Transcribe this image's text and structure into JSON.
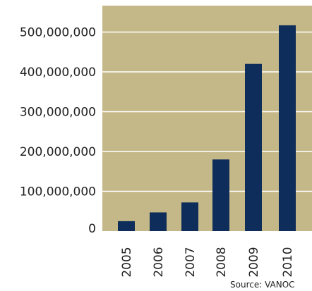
{
  "chart_data": {
    "type": "bar",
    "title": "",
    "xlabel": "",
    "ylabel": "",
    "categories": [
      "2005",
      "2006",
      "2007",
      "2008",
      "2009",
      "2010"
    ],
    "values": [
      25000000,
      47000000,
      72000000,
      180000000,
      420000000,
      517000000
    ],
    "ylim": [
      0,
      550000000
    ],
    "yticks": [
      0,
      100000000,
      200000000,
      300000000,
      400000000,
      500000000
    ],
    "ytick_labels": [
      "0",
      "100,000,000",
      "200,000,000",
      "300,000,000",
      "400,000,000",
      "500,000,000"
    ],
    "grid": true,
    "colors": {
      "plot_background": "#C4B888",
      "bar": "#0F2D5A",
      "grid": "#FFFFFF"
    }
  },
  "source": "Source: VANOC"
}
